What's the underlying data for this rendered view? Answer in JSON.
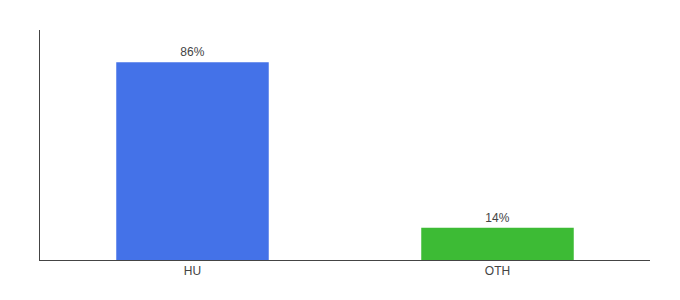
{
  "chart_data": {
    "type": "bar",
    "categories": [
      "HU",
      "OTH"
    ],
    "values": [
      86,
      14
    ],
    "value_labels": [
      "86%",
      "14%"
    ],
    "colors": [
      "#4472e8",
      "#3dbb35"
    ],
    "data_labels": true,
    "ylim": [
      0,
      100
    ],
    "yticks": [],
    "tick_labels": "x",
    "grid": false
  }
}
